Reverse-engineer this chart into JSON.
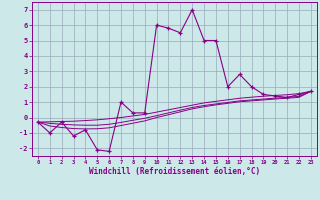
{
  "xlabel": "Windchill (Refroidissement éolien,°C)",
  "xlim": [
    -0.5,
    23.5
  ],
  "ylim": [
    -2.5,
    7.5
  ],
  "yticks": [
    -2,
    -1,
    0,
    1,
    2,
    3,
    4,
    5,
    6,
    7
  ],
  "xticks": [
    0,
    1,
    2,
    3,
    4,
    5,
    6,
    7,
    8,
    9,
    10,
    11,
    12,
    13,
    14,
    15,
    16,
    17,
    18,
    19,
    20,
    21,
    22,
    23
  ],
  "bg_color": "#cce8e8",
  "line_color": "#880088",
  "grid_color": "#99aabb",
  "main_x": [
    0,
    1,
    2,
    3,
    4,
    5,
    6,
    7,
    8,
    9,
    10,
    11,
    12,
    13,
    14,
    15,
    16,
    17,
    18,
    19,
    20,
    21,
    22,
    23
  ],
  "main_y": [
    -0.3,
    -1.0,
    -0.3,
    -1.2,
    -0.8,
    -2.1,
    -2.2,
    1.0,
    0.3,
    0.3,
    6.0,
    5.8,
    5.5,
    7.0,
    5.0,
    5.0,
    2.0,
    2.8,
    2.0,
    1.5,
    1.4,
    1.3,
    1.5,
    1.7
  ],
  "line2_y": [
    -0.3,
    -0.28,
    -0.26,
    -0.24,
    -0.2,
    -0.15,
    -0.08,
    0.0,
    0.1,
    0.2,
    0.35,
    0.5,
    0.65,
    0.8,
    0.95,
    1.05,
    1.15,
    1.25,
    1.32,
    1.38,
    1.43,
    1.48,
    1.55,
    1.7
  ],
  "line3_y": [
    -0.3,
    -0.38,
    -0.44,
    -0.48,
    -0.5,
    -0.5,
    -0.44,
    -0.32,
    -0.18,
    -0.05,
    0.12,
    0.3,
    0.48,
    0.65,
    0.78,
    0.88,
    0.98,
    1.08,
    1.14,
    1.2,
    1.26,
    1.31,
    1.37,
    1.7
  ],
  "line4_y": [
    -0.3,
    -0.55,
    -0.65,
    -0.72,
    -0.74,
    -0.73,
    -0.67,
    -0.52,
    -0.37,
    -0.22,
    0.0,
    0.18,
    0.37,
    0.56,
    0.7,
    0.82,
    0.92,
    1.02,
    1.08,
    1.14,
    1.2,
    1.25,
    1.31,
    1.7
  ]
}
